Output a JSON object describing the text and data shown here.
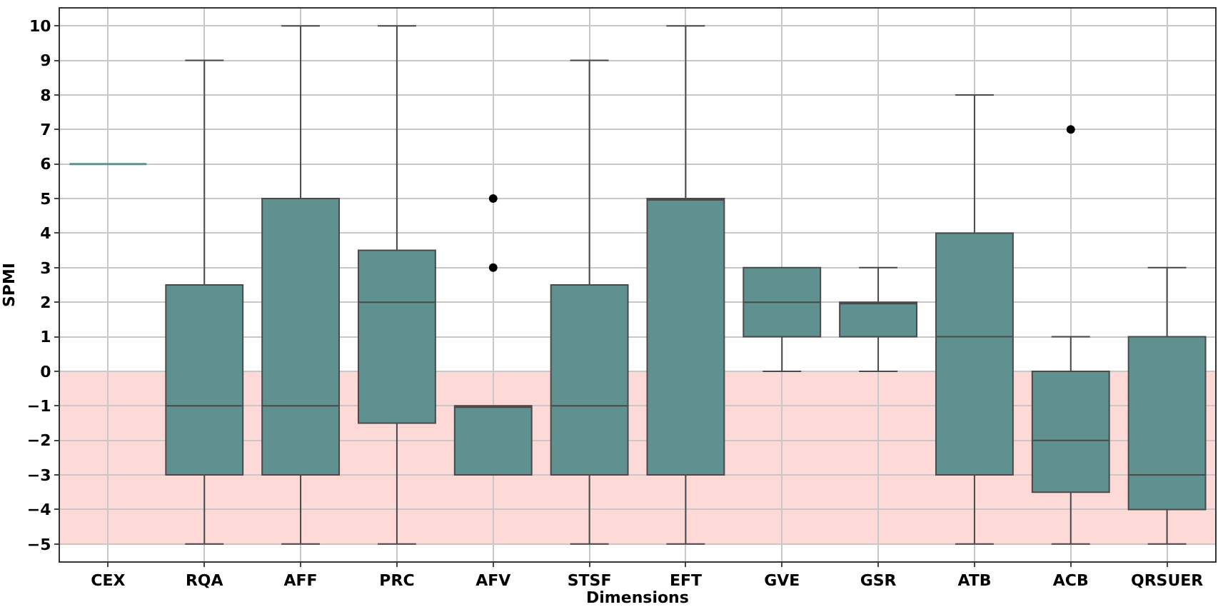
{
  "chart_data": {
    "type": "box",
    "xlabel": "Dimensions",
    "ylabel": "SPMI",
    "categories": [
      "CEX",
      "RQA",
      "AFF",
      "PRC",
      "AFV",
      "STSF",
      "EFT",
      "GVE",
      "GSR",
      "ATB",
      "ACB",
      "QRSUER"
    ],
    "color": "#5f9191",
    "boxes": [
      {
        "low": 6,
        "q1": 6,
        "median": 6,
        "q3": 6,
        "high": 6
      },
      {
        "low": -5,
        "q1": -3,
        "median": -1,
        "q3": 2.5,
        "high": 9
      },
      {
        "low": -5,
        "q1": -3,
        "median": -1,
        "q3": 5,
        "high": 10
      },
      {
        "low": -5,
        "q1": -1.5,
        "median": 2,
        "q3": 3.5,
        "high": 10
      },
      {
        "low": -3,
        "q1": -3,
        "median": -1,
        "q3": -1,
        "high": -1,
        "outliers": [
          3,
          5
        ]
      },
      {
        "low": -5,
        "q1": -3,
        "median": -1,
        "q3": 2.5,
        "high": 9
      },
      {
        "low": -5,
        "q1": -3,
        "median": 5,
        "q3": 5,
        "high": 10
      },
      {
        "low": 0,
        "q1": 1,
        "median": 2,
        "q3": 3,
        "high": 3
      },
      {
        "low": 0,
        "q1": 1,
        "median": 2,
        "q3": 2,
        "high": 3
      },
      {
        "low": -5,
        "q1": -3,
        "median": 1,
        "q3": 4,
        "high": 8
      },
      {
        "low": -5,
        "q1": -3.5,
        "median": -2,
        "q3": 0,
        "high": 1,
        "outliers": [
          7
        ]
      },
      {
        "low": -5,
        "q1": -4,
        "median": -3,
        "q3": 1,
        "high": 3
      }
    ],
    "ylim": [
      -5.5,
      10.5
    ],
    "yticks": [
      {
        "value": -5,
        "label": "−5"
      },
      {
        "value": -4,
        "label": "−4"
      },
      {
        "value": -3,
        "label": "−3"
      },
      {
        "value": -2,
        "label": "−2"
      },
      {
        "value": -1,
        "label": "−1"
      },
      0,
      1,
      2,
      3,
      4,
      5,
      6,
      7,
      8,
      9,
      10
    ],
    "grid": true,
    "bands": [
      {
        "axis": "y",
        "from": -5,
        "to": 0,
        "color": "#fdd9d7"
      }
    ]
  }
}
